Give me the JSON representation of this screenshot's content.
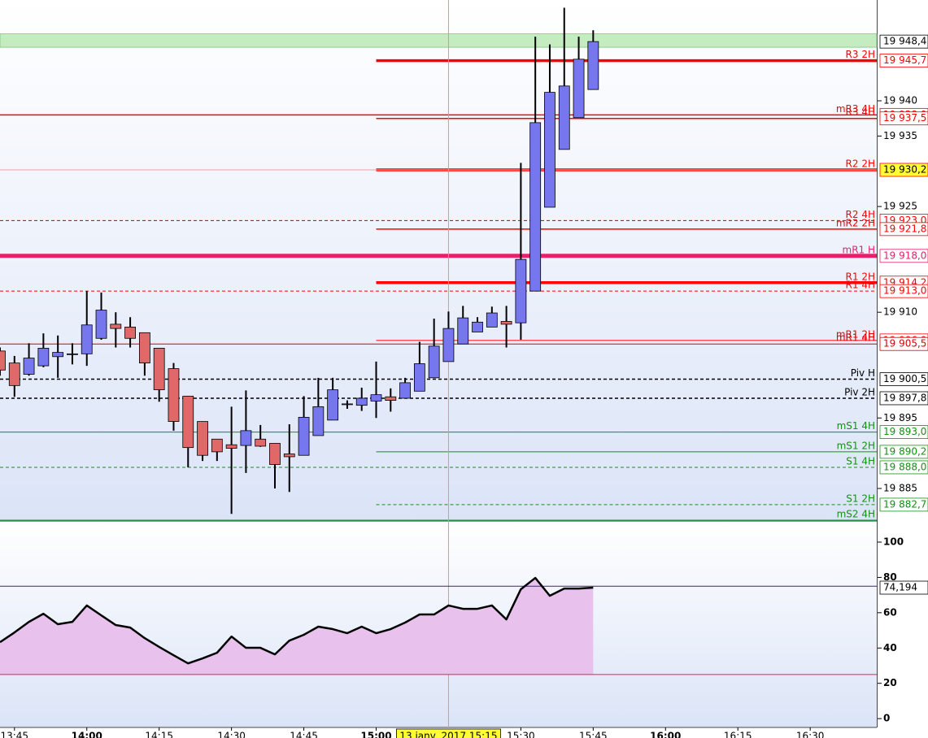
{
  "chart_data": {
    "type": "candlestick",
    "x": [
      822,
      825,
      828,
      831,
      834,
      837,
      840,
      843,
      846,
      849,
      852,
      855,
      858,
      861,
      864,
      867,
      870,
      873,
      876,
      879,
      882,
      885,
      888,
      891,
      894,
      897,
      900,
      903,
      906,
      909,
      912,
      915,
      918,
      921,
      924,
      927,
      930,
      933,
      936,
      939,
      942,
      945
    ],
    "open": [
      19904.5,
      19902.8,
      19901.2,
      19902.4,
      19903.7,
      19904.0,
      19904.1,
      19906.3,
      19908.3,
      19907.9,
      19907.1,
      19904.9,
      19902.0,
      19898.1,
      19894.5,
      19892.0,
      19891.2,
      19891.1,
      19892.0,
      19891.4,
      19889.9,
      19889.7,
      19892.5,
      19894.7,
      19896.9,
      19896.8,
      19897.4,
      19898.0,
      19897.8,
      19898.8,
      19900.7,
      19903.0,
      19905.5,
      19907.2,
      19907.9,
      19908.7,
      19908.5,
      19913.0,
      19924.9,
      19933.1,
      19937.6,
      19941.6
    ],
    "high": [
      19905.0,
      19903.8,
      19905.6,
      19907.0,
      19906.7,
      19905.6,
      19913.0,
      19912.8,
      19910.0,
      19909.3,
      19907.1,
      19904.9,
      19902.8,
      19898.1,
      19894.5,
      19892.0,
      19896.6,
      19898.9,
      19894.0,
      19891.4,
      19894.1,
      19898.1,
      19900.7,
      19900.7,
      19897.5,
      19899.3,
      19903.0,
      19899.2,
      19900.7,
      19905.8,
      19909.1,
      19910.1,
      19910.9,
      19909.3,
      19910.8,
      19910.9,
      19931.2,
      19949.1,
      19948.0,
      19953.2,
      19949.1,
      19950.0
    ],
    "low": [
      19901.0,
      19898.0,
      19901.0,
      19902.2,
      19900.7,
      19902.6,
      19902.4,
      19906.1,
      19905.0,
      19905.0,
      19901.0,
      19897.3,
      19893.2,
      19888.0,
      19888.9,
      19888.9,
      19881.4,
      19887.2,
      19890.9,
      19885.0,
      19884.5,
      19889.7,
      19892.5,
      19894.7,
      19896.3,
      19896.0,
      19895.0,
      19895.9,
      19897.8,
      19898.8,
      19900.7,
      19903.0,
      19905.5,
      19907.2,
      19907.9,
      19905.0,
      19906.1,
      19913.0,
      19924.9,
      19933.1,
      19937.6,
      19941.6
    ],
    "close": [
      19901.8,
      19899.6,
      19903.5,
      19904.9,
      19904.3,
      19904.1,
      19908.2,
      19910.3,
      19907.7,
      19906.3,
      19902.8,
      19899.0,
      19894.5,
      19890.8,
      19889.7,
      19890.2,
      19890.7,
      19893.2,
      19891.0,
      19888.4,
      19889.5,
      19895.1,
      19896.6,
      19899.0,
      19897.0,
      19897.8,
      19898.3,
      19897.5,
      19900.0,
      19902.7,
      19905.2,
      19907.7,
      19909.2,
      19908.6,
      19909.9,
      19908.3,
      19917.5,
      19936.9,
      19941.2,
      19942.1,
      19945.9,
      19948.4
    ],
    "up_color": "#7676ee",
    "down_color": "#e06868",
    "xlim": [
      822,
      1003.8
    ],
    "xticks": [
      {
        "value": 825,
        "label": "13:45"
      },
      {
        "value": 840,
        "label": "14:00"
      },
      {
        "value": 855,
        "label": "14:15"
      },
      {
        "value": 870,
        "label": "14:30"
      },
      {
        "value": 885,
        "label": "14:45"
      },
      {
        "value": 900,
        "label": "15:00"
      },
      {
        "value": 930,
        "label": "15:30"
      },
      {
        "value": 945,
        "label": "15:45"
      },
      {
        "value": 960,
        "label": "16:00"
      },
      {
        "value": 975,
        "label": "16:15"
      },
      {
        "value": 990,
        "label": "16:30"
      }
    ],
    "ylim": [
      19880.5,
      19954.3
    ],
    "yticks": [
      {
        "value": 19940,
        "label": "19 940"
      },
      {
        "value": 19935,
        "label": "19 935"
      },
      {
        "value": 19925,
        "label": "19 925"
      },
      {
        "value": 19910,
        "label": "19 910"
      },
      {
        "value": 19895,
        "label": "19 895"
      },
      {
        "value": 19885,
        "label": "19 885"
      }
    ],
    "zone": [
      19947.6,
      19949.5
    ],
    "zone_color": "#c4ecc0",
    "last": {
      "value": 19948.4,
      "label": "19 948,4"
    },
    "levels": [
      {
        "name": "R3 2H",
        "value": 19945.7,
        "label": "19 945,7",
        "color": "#ff0000",
        "width": 3.5,
        "dashed": false,
        "start": 900
      },
      {
        "name": "mR3 4H",
        "value": 19938.0,
        "label": "19 938,0",
        "color": "#ff0000",
        "width": 1.5,
        "dashed": false
      },
      {
        "name": "R3 4H",
        "value": 19937.5,
        "label": "19 937,5",
        "color": "#ff0000",
        "width": 1.5,
        "dashed": false,
        "start": 900
      },
      {
        "name": "R2 2H",
        "value": 19930.2,
        "label": "19 930,2",
        "color": "#ff0000",
        "width": 3.5,
        "dashed": false,
        "start": 900,
        "highlight": "#ffff33"
      },
      {
        "name": "R2 4H",
        "value": 19923.0,
        "label": "19 923,0",
        "color": "#ff0000",
        "width": 1.2,
        "dashed": true
      },
      {
        "name": "mR2 2H",
        "value": 19921.8,
        "label": "19 921,8",
        "color": "#ff0000",
        "width": 1.5,
        "dashed": false,
        "start": 900
      },
      {
        "name": "mR1 H",
        "value": 19918.0,
        "label": "19 918,0",
        "color": "#e8206a",
        "width": 5,
        "dashed": false
      },
      {
        "name": "R1 2H",
        "value": 19914.2,
        "label": "19 914,2",
        "color": "#ff0000",
        "width": 3.5,
        "dashed": false,
        "start": 900
      },
      {
        "name": "R1 4H",
        "value": 19913.0,
        "label": "19 913,0",
        "color": "#ff0000",
        "width": 1,
        "dashed": true
      },
      {
        "name": "mR1 2H",
        "value": 19906.0,
        "label": "19 906,0",
        "color": "#ff0000",
        "width": 1,
        "dashed": false,
        "start": 900
      },
      {
        "name": "mR1 4H",
        "value": 19905.5,
        "label": "19 905,5",
        "color": "#dd0000",
        "width": 1,
        "dashed": false
      },
      {
        "name": "Piv H",
        "value": 19900.5,
        "label": "19 900,5",
        "color": "#000000",
        "width": 1.5,
        "dashed": true
      },
      {
        "name": "Piv 2H",
        "value": 19897.8,
        "label": "19 897,8",
        "color": "#000000",
        "width": 1.5,
        "dashed": true
      },
      {
        "name": "mS1 4H",
        "value": 19893.0,
        "label": "19 893,0",
        "color": "#159015",
        "width": 1,
        "dashed": false
      },
      {
        "name": "mS1 2H",
        "value": 19890.2,
        "label": "19 890,2",
        "color": "#159015",
        "width": 1,
        "dashed": false,
        "start": 900
      },
      {
        "name": "S1 4H",
        "value": 19888.0,
        "label": "19 888,0",
        "color": "#159015",
        "width": 1,
        "dashed": true
      },
      {
        "name": "S1 2H",
        "value": 19882.7,
        "label": "19 882,7",
        "color": "#159015",
        "width": 1,
        "dashed": true,
        "start": 900
      },
      {
        "name": "mS2 4H",
        "value": 19880.5,
        "color": "#159015",
        "width": 1,
        "dashed": false
      }
    ],
    "crosshair": {
      "x": 915,
      "y": 19930.2,
      "label": "13 janv. 2017 15:15"
    },
    "indicator": {
      "type": "line",
      "values": [
        43.3,
        48.8,
        54.8,
        59.4,
        53.5,
        54.8,
        64.1,
        58.5,
        53.0,
        51.6,
        45.6,
        40.6,
        35.9,
        31.3,
        34.1,
        37.3,
        46.5,
        40.1,
        40.1,
        36.4,
        44.2,
        47.5,
        52.1,
        50.7,
        48.4,
        52.1,
        48.4,
        50.7,
        54.4,
        59.0,
        59.0,
        64.1,
        62.2,
        62.2,
        64.1,
        56.2,
        73.3,
        79.7,
        69.6,
        73.7,
        73.7,
        74.194
      ],
      "color": "#000000",
      "fill": "#e8c2ec",
      "ylim": [
        -5,
        111.5
      ],
      "yticks": [
        100,
        80,
        60,
        40,
        20,
        0
      ],
      "bands": [
        {
          "value": 75,
          "color": "#3a2a6a"
        },
        {
          "value": 25,
          "color": "#e0205a"
        }
      ],
      "last": {
        "value": 74.194,
        "label": "74,194"
      }
    }
  }
}
